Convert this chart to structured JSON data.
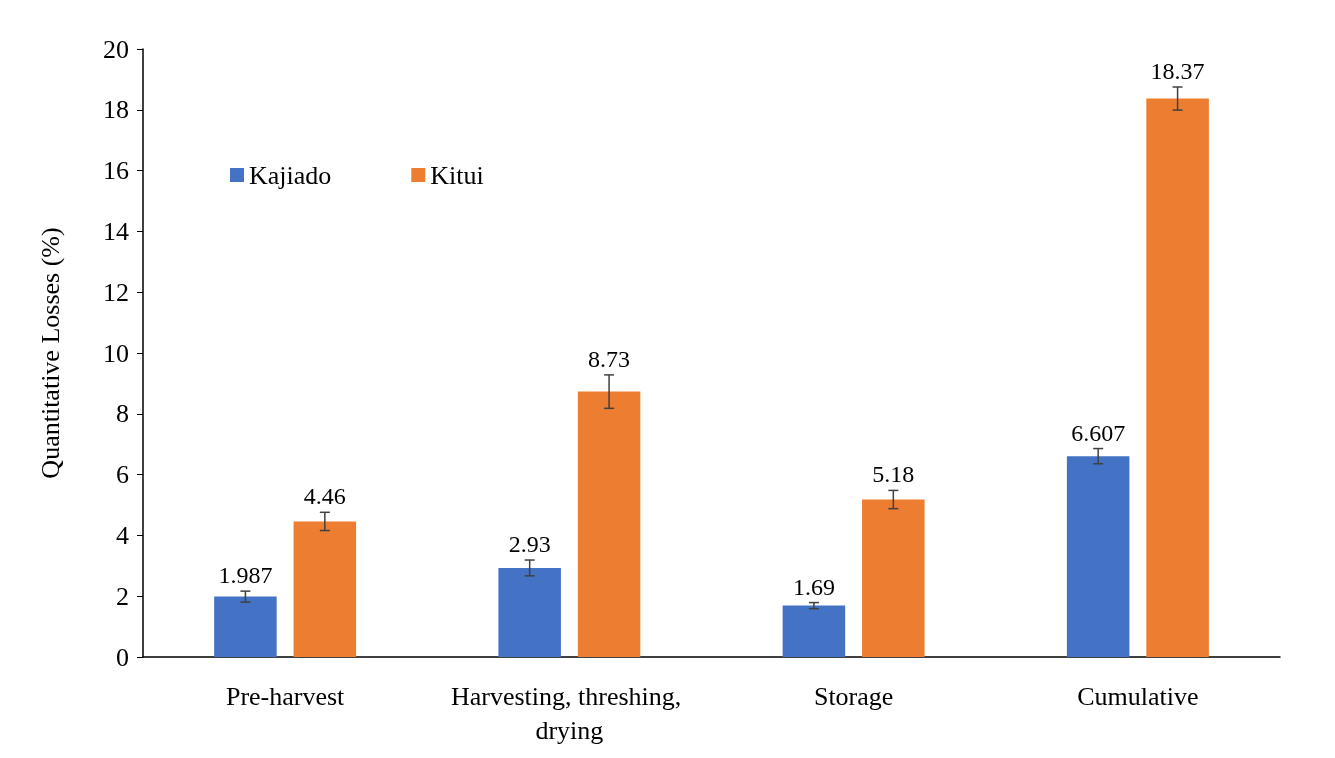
{
  "chart_data": {
    "type": "bar",
    "ylabel": "Quantitative Losses (%)",
    "categories": [
      "Pre-harvest",
      "Harvesting, threshing, drying",
      "Storage",
      "Cumulative"
    ],
    "series": [
      {
        "name": "Kajiado",
        "color": "#4472c4",
        "values": [
          1.987,
          2.93,
          1.69,
          6.607
        ],
        "errors": [
          0.18,
          0.26,
          0.1,
          0.25
        ]
      },
      {
        "name": "Kitui",
        "color": "#ed7d31",
        "values": [
          4.46,
          8.73,
          5.18,
          18.37
        ],
        "errors": [
          0.3,
          0.55,
          0.3,
          0.38
        ]
      }
    ],
    "ylim": [
      0,
      20
    ],
    "yticks": [
      0,
      2,
      4,
      6,
      8,
      10,
      12,
      14,
      16,
      18,
      20
    ],
    "data_labels": true,
    "grid": false,
    "legend": "top left"
  }
}
